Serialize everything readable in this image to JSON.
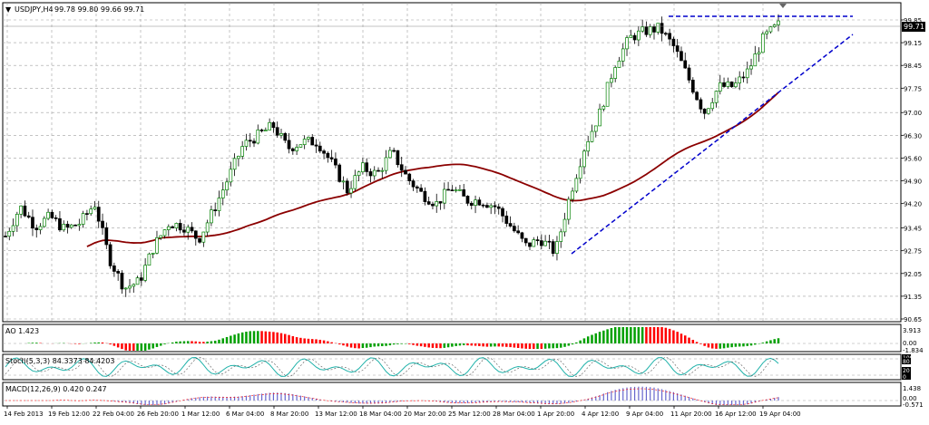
{
  "main_panel": {
    "symbol_label": "USDJPY,H4",
    "ohlc_label": "99.78 99.80 99.66 99.71",
    "current_price": "99.71",
    "y_ticks": [
      "99.85",
      "99.15",
      "98.45",
      "97.75",
      "97.00",
      "96.30",
      "95.60",
      "94.90",
      "94.20",
      "93.45",
      "92.75",
      "92.05",
      "91.35",
      "90.65"
    ]
  },
  "indicators": {
    "ao": {
      "label": "AO 1.423",
      "scale_top": "3.913",
      "scale_mid": "0.00",
      "scale_bottom": "-1.834"
    },
    "stoch": {
      "label": "Stoch(5,3,3) 84.3373 84.4203",
      "scale": [
        "100",
        "80",
        "20",
        "0"
      ]
    },
    "macd": {
      "label": "MACD(12,26,9) 0.420 0.247",
      "scale_top": "1.438",
      "scale_mid": "0.00",
      "scale_bottom": "-0.571"
    }
  },
  "x_axis": {
    "labels": [
      "14 Feb 2013",
      "19 Feb 12:00",
      "22 Feb 04:00",
      "26 Feb 20:00",
      "1 Mar 12:00",
      "6 Mar 04:00",
      "8 Mar 20:00",
      "13 Mar 12:00",
      "18 Mar 04:00",
      "20 Mar 20:00",
      "25 Mar 12:00",
      "28 Mar 04:00",
      "1 Apr 20:00",
      "4 Apr 12:00",
      "9 Apr 04:00",
      "11 Apr 20:00",
      "16 Apr 12:00",
      "19 Apr 04:00"
    ]
  },
  "chart_data": {
    "type": "candlestick",
    "symbol": "USDJPY",
    "timeframe": "H4",
    "y_range": [
      90.65,
      99.85
    ],
    "series_path": [
      [
        "14 Feb 2013",
        93.2
      ],
      [
        "15 Feb 00:00",
        94.1
      ],
      [
        "18 Feb 00:00",
        93.5
      ],
      [
        "19 Feb 12:00",
        93.8
      ],
      [
        "20 Feb 12:00",
        93.4
      ],
      [
        "21 Feb 12:00",
        93.6
      ],
      [
        "22 Feb 04:00",
        94.2
      ],
      [
        "22 Feb 20:00",
        92.5
      ],
      [
        "25 Feb 08:00",
        91.6
      ],
      [
        "26 Feb 20:00",
        91.8
      ],
      [
        "27 Feb 20:00",
        92.9
      ],
      [
        "28 Feb 20:00",
        93.6
      ],
      [
        "1 Mar 12:00",
        93.5
      ],
      [
        "4 Mar 12:00",
        93.1
      ],
      [
        "5 Mar 12:00",
        94.0
      ],
      [
        "6 Mar 04:00",
        95.0
      ],
      [
        "7 Mar 04:00",
        96.0
      ],
      [
        "8 Mar 04:00",
        96.3
      ],
      [
        "8 Mar 20:00",
        96.6
      ],
      [
        "11 Mar 12:00",
        95.9
      ],
      [
        "12 Mar 12:00",
        96.1
      ],
      [
        "13 Mar 12:00",
        96.1
      ],
      [
        "14 Mar 12:00",
        95.4
      ],
      [
        "15 Mar 12:00",
        94.6
      ],
      [
        "18 Mar 04:00",
        95.3
      ],
      [
        "19 Mar 04:00",
        95.1
      ],
      [
        "20 Mar 04:00",
        95.8
      ],
      [
        "20 Mar 20:00",
        95.0
      ],
      [
        "21 Mar 20:00",
        94.5
      ],
      [
        "22 Mar 20:00",
        94.2
      ],
      [
        "25 Mar 12:00",
        94.7
      ],
      [
        "26 Mar 12:00",
        94.3
      ],
      [
        "27 Mar 12:00",
        94.3
      ],
      [
        "28 Mar 04:00",
        94.1
      ],
      [
        "29 Mar 04:00",
        93.5
      ],
      [
        "1 Apr 04:00",
        92.9
      ],
      [
        "1 Apr 20:00",
        93.1
      ],
      [
        "2 Apr 12:00",
        92.7
      ],
      [
        "3 Apr 12:00",
        94.5
      ],
      [
        "4 Apr 12:00",
        96.0
      ],
      [
        "5 Apr 04:00",
        97.0
      ],
      [
        "5 Apr 20:00",
        98.5
      ],
      [
        "8 Apr 12:00",
        99.3
      ],
      [
        "9 Apr 04:00",
        99.5
      ],
      [
        "10 Apr 04:00",
        99.6
      ],
      [
        "11 Apr 04:00",
        99.0
      ],
      [
        "11 Apr 20:00",
        98.0
      ],
      [
        "12 Apr 12:00",
        97.0
      ],
      [
        "15 Apr 04:00",
        97.8
      ],
      [
        "16 Apr 12:00",
        97.8
      ],
      [
        "17 Apr 12:00",
        98.3
      ],
      [
        "18 Apr 04:00",
        99.3
      ],
      [
        "19 Apr 04:00",
        99.7
      ]
    ],
    "moving_average": {
      "color": "#8b0000"
    },
    "trendlines": {
      "color": "#0000cc",
      "style": "dashed"
    },
    "up_candle_color": "#008000",
    "down_candle_color": "#000000",
    "ao_colors": {
      "up": "#00a000",
      "down": "#ff0000"
    },
    "stoch_color": "#20b2aa",
    "macd_color": "#6666cc"
  }
}
